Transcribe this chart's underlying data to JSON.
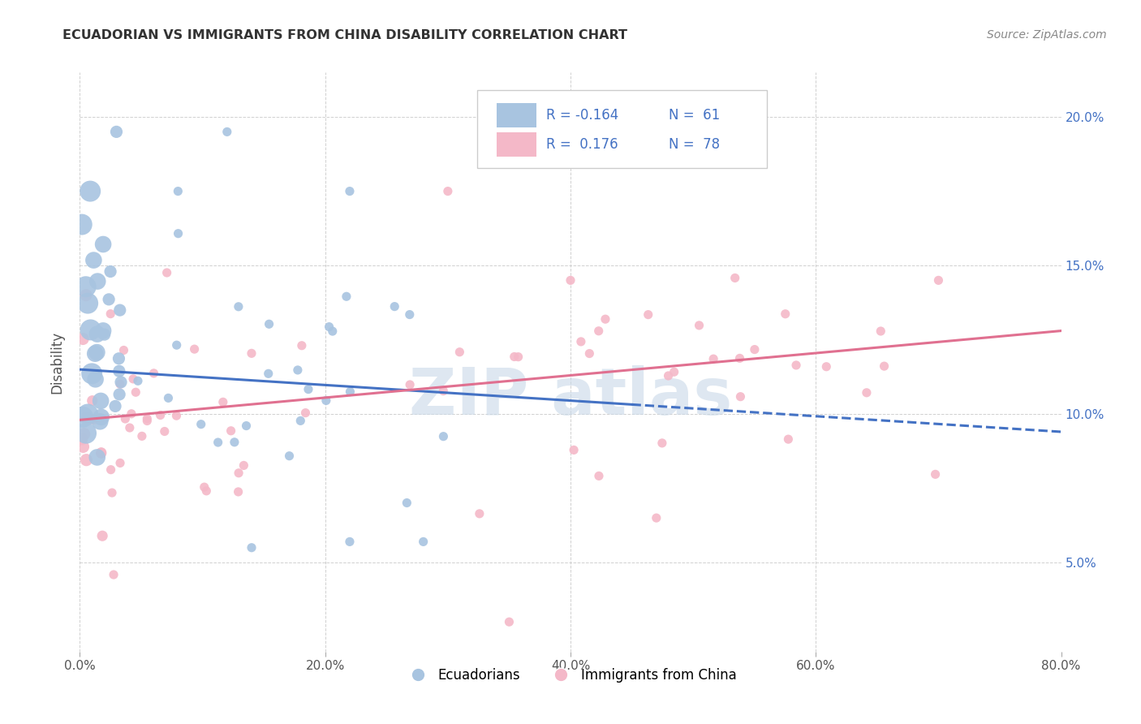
{
  "title": "ECUADORIAN VS IMMIGRANTS FROM CHINA DISABILITY CORRELATION CHART",
  "source": "Source: ZipAtlas.com",
  "ylabel": "Disability",
  "xmin": 0.0,
  "xmax": 0.8,
  "ymin": 0.02,
  "ymax": 0.215,
  "yticks": [
    0.05,
    0.1,
    0.15,
    0.2
  ],
  "ytick_labels": [
    "5.0%",
    "10.0%",
    "15.0%",
    "20.0%"
  ],
  "xticks": [
    0.0,
    0.2,
    0.4,
    0.6,
    0.8
  ],
  "xtick_labels": [
    "0.0%",
    "20.0%",
    "40.0%",
    "60.0%",
    "80.0%"
  ],
  "blue_R": -0.164,
  "blue_N": 61,
  "pink_R": 0.176,
  "pink_N": 78,
  "blue_color": "#a8c4e0",
  "pink_color": "#f4b8c8",
  "blue_line_color": "#4472c4",
  "pink_line_color": "#e07090",
  "background_color": "#ffffff",
  "grid_color": "#d0d0d0",
  "legend_text_color": "#4472c4",
  "title_color": "#333333",
  "source_color": "#888888",
  "watermark_color": "#c8d8e8",
  "blue_line_solid_end": 0.45,
  "blue_line_start_y": 0.115,
  "blue_line_end_y": 0.094,
  "pink_line_start_y": 0.098,
  "pink_line_end_y": 0.128
}
